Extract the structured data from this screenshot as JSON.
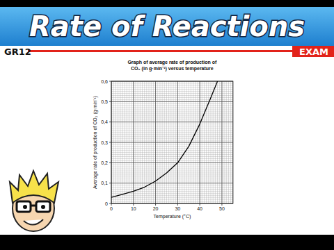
{
  "header": {
    "title": "Rate of Reactions",
    "left_tag": "GR12",
    "right_tag": "EXAM"
  },
  "chart_data": {
    "type": "line",
    "title": "Graph of average rate of production of CO₂ (in g·min⁻¹) versus temperature",
    "x_label": "Temperature (°C)",
    "y_label": "Average rate of production of CO₂ (g·min⁻¹)",
    "x": [
      0,
      5,
      10,
      15,
      20,
      25,
      30,
      35,
      40,
      45,
      48
    ],
    "values": [
      0.03,
      0.045,
      0.06,
      0.08,
      0.11,
      0.15,
      0.2,
      0.28,
      0.39,
      0.52,
      0.6
    ],
    "color": "#000000",
    "xlim": [
      0,
      55
    ],
    "xticks": [
      0,
      10,
      20,
      30,
      40,
      50
    ],
    "ylim": [
      0,
      0.6
    ],
    "yticks": [
      0,
      {
        "value": 0.1,
        "label": "0,1"
      },
      {
        "value": 0.2,
        "label": "0,2"
      },
      {
        "value": 0.3,
        "label": "0,3"
      },
      {
        "value": 0.4,
        "label": "0,4"
      },
      {
        "value": 0.5,
        "label": "0,5"
      },
      {
        "value": 0.6,
        "label": "0,6"
      }
    ],
    "grid": true
  }
}
